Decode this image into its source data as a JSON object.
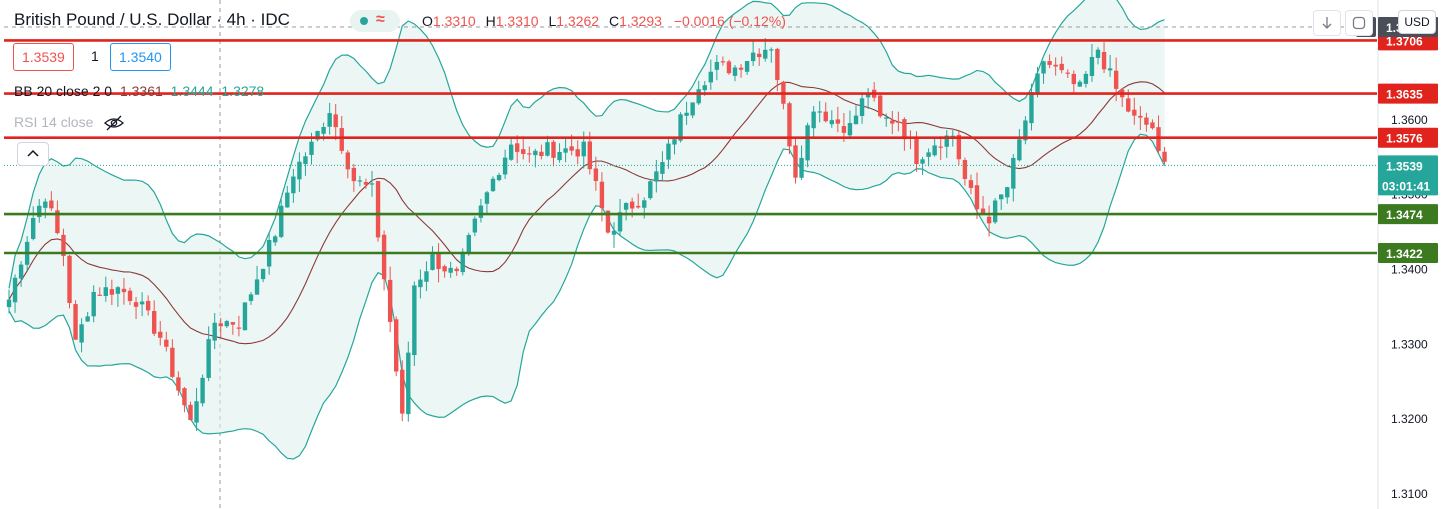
{
  "header": {
    "symbol": "British Pound / U.S. Dollar",
    "separator1": "·",
    "interval": "4h",
    "separator2": "·",
    "exchange": "IDC",
    "ohlc": {
      "open_label": "O",
      "open": "1.3310",
      "high_label": "H",
      "high": "1.3310",
      "low_label": "L",
      "low": "1.3262",
      "close_label": "C",
      "close": "1.3293",
      "change": "−0.0016 (−0.12%)"
    },
    "wave_icon": "≈"
  },
  "trade": {
    "bid": "1.3539",
    "spread": "1",
    "ask": "1.3540"
  },
  "indicators": {
    "bb": {
      "label": "BB 20 close 2 0",
      "basis": "1.3361",
      "upper": "1.3444",
      "lower": "1.3278"
    },
    "rsi": {
      "label": "RSI 14 close"
    }
  },
  "controls": {
    "currency": "USD",
    "collapse_icon": "chevron-up-icon",
    "plus_icon": "+"
  },
  "colors": {
    "bull": "#26a69a",
    "bear": "#ef5350",
    "band": "#26a69a",
    "band_fill": "#e0f2ef",
    "basis": "#8b3a3a",
    "resistance": "#e0231c",
    "support": "#3b7a1f",
    "crosshair": "#9598a1"
  },
  "chart_data": {
    "type": "candlestick",
    "y_range": [
      1.308,
      1.376
    ],
    "y_ticks": [
      "1.3100",
      "1.3200",
      "1.3300",
      "1.3400",
      "1.3500",
      "1.3600"
    ],
    "last_price": "1.3539",
    "countdown": "03:01:41",
    "crosshair_price": "1.3724",
    "resistance_levels": [
      {
        "value": 1.3706,
        "label": "1.3706"
      },
      {
        "value": 1.3635,
        "label": "1.3635"
      },
      {
        "value": 1.3576,
        "label": "1.3576"
      }
    ],
    "support_levels": [
      {
        "value": 1.3474,
        "label": "1.3474"
      },
      {
        "value": 1.3422,
        "label": "1.3422"
      }
    ],
    "price_path": [
      [
        0,
        1.336
      ],
      [
        4,
        1.347
      ],
      [
        6,
        1.35
      ],
      [
        9,
        1.342
      ],
      [
        11,
        1.33
      ],
      [
        14,
        1.337
      ],
      [
        18,
        1.3375
      ],
      [
        21,
        1.336
      ],
      [
        25,
        1.331
      ],
      [
        28,
        1.324
      ],
      [
        30,
        1.3195
      ],
      [
        34,
        1.333
      ],
      [
        38,
        1.333
      ],
      [
        41,
        1.339
      ],
      [
        44,
        1.345
      ],
      [
        47,
        1.353
      ],
      [
        50,
        1.3565
      ],
      [
        53,
        1.3615
      ],
      [
        57,
        1.352
      ],
      [
        60,
        1.3505
      ],
      [
        63,
        1.333
      ],
      [
        65,
        1.32
      ],
      [
        67,
        1.338
      ],
      [
        70,
        1.3415
      ],
      [
        74,
        1.339
      ],
      [
        77,
        1.346
      ],
      [
        80,
        1.352
      ],
      [
        83,
        1.357
      ],
      [
        86,
        1.355
      ],
      [
        89,
        1.356
      ],
      [
        92,
        1.356
      ],
      [
        95,
        1.356
      ],
      [
        97,
        1.351
      ],
      [
        99,
        1.345
      ],
      [
        102,
        1.348
      ],
      [
        105,
        1.35
      ],
      [
        108,
        1.354
      ],
      [
        111,
        1.36
      ],
      [
        114,
        1.365
      ],
      [
        117,
        1.367
      ],
      [
        120,
        1.367
      ],
      [
        123,
        1.369
      ],
      [
        126,
        1.37
      ],
      [
        130,
        1.353
      ],
      [
        133,
        1.362
      ],
      [
        136,
        1.36
      ],
      [
        139,
        1.359
      ],
      [
        142,
        1.364
      ],
      [
        144,
        1.36
      ],
      [
        147,
        1.36
      ],
      [
        150,
        1.355
      ],
      [
        153,
        1.357
      ],
      [
        156,
        1.358
      ],
      [
        158,
        1.352
      ],
      [
        160,
        1.348
      ],
      [
        162,
        1.347
      ],
      [
        165,
        1.351
      ],
      [
        168,
        1.36
      ],
      [
        171,
        1.368
      ],
      [
        174,
        1.366
      ],
      [
        177,
        1.364
      ],
      [
        180,
        1.3695
      ],
      [
        183,
        1.364
      ],
      [
        186,
        1.36
      ],
      [
        189,
        1.359
      ],
      [
        190,
        1.355
      ],
      [
        191,
        1.3539
      ]
    ]
  }
}
